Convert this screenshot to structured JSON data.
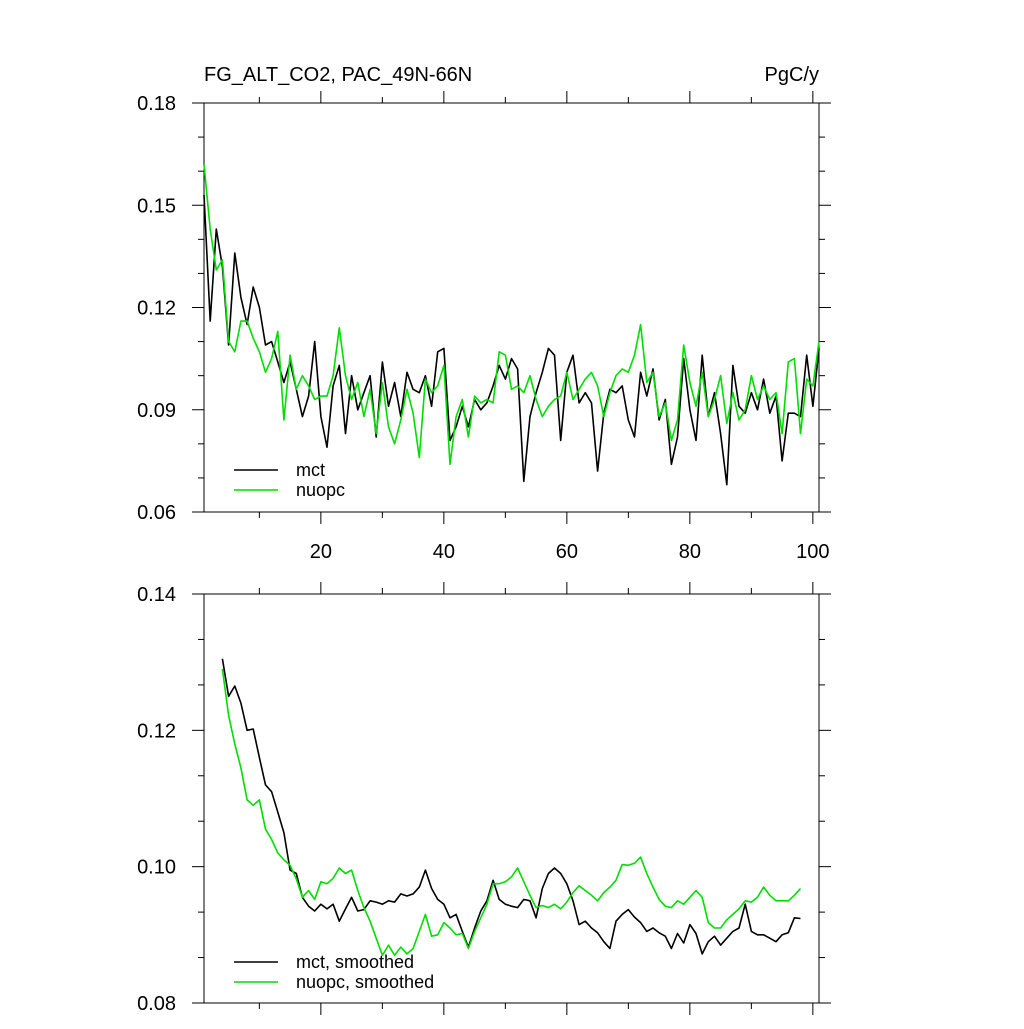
{
  "chart_data": [
    {
      "type": "line",
      "title": "FG_ALT_CO2, PAC_49N-66N",
      "units": "PgC/y",
      "xlabel": "",
      "ylabel": "",
      "xlim": [
        1,
        101
      ],
      "ylim": [
        0.06,
        0.18
      ],
      "x_ticks": [
        20,
        40,
        60,
        80,
        100
      ],
      "y_ticks": [
        "0.06",
        "0.09",
        "0.12",
        "0.15",
        "0.18"
      ],
      "grid": false,
      "legend_position": "bottom-left",
      "x": [
        1,
        2,
        3,
        4,
        5,
        6,
        7,
        8,
        9,
        10,
        11,
        12,
        13,
        14,
        15,
        16,
        17,
        18,
        19,
        20,
        21,
        22,
        23,
        24,
        25,
        26,
        27,
        28,
        29,
        30,
        31,
        32,
        33,
        34,
        35,
        36,
        37,
        38,
        39,
        40,
        41,
        42,
        43,
        44,
        45,
        46,
        47,
        48,
        49,
        50,
        51,
        52,
        53,
        54,
        55,
        56,
        57,
        58,
        59,
        60,
        61,
        62,
        63,
        64,
        65,
        66,
        67,
        68,
        69,
        70,
        71,
        72,
        73,
        74,
        75,
        76,
        77,
        78,
        79,
        80,
        81,
        82,
        83,
        84,
        85,
        86,
        87,
        88,
        89,
        90,
        91,
        92,
        93,
        94,
        95,
        96,
        97,
        98,
        99,
        100,
        101
      ],
      "series": [
        {
          "name": "mct",
          "color": "#000000",
          "values": [
            0.153,
            0.116,
            0.143,
            0.132,
            0.109,
            0.136,
            0.123,
            0.115,
            0.126,
            0.12,
            0.109,
            0.11,
            0.104,
            0.098,
            0.104,
            0.096,
            0.088,
            0.094,
            0.11,
            0.088,
            0.079,
            0.097,
            0.103,
            0.083,
            0.1,
            0.09,
            0.095,
            0.1,
            0.082,
            0.104,
            0.091,
            0.098,
            0.088,
            0.101,
            0.096,
            0.095,
            0.1,
            0.091,
            0.107,
            0.108,
            0.081,
            0.085,
            0.091,
            0.085,
            0.093,
            0.09,
            0.092,
            0.097,
            0.103,
            0.099,
            0.105,
            0.102,
            0.069,
            0.088,
            0.095,
            0.101,
            0.108,
            0.106,
            0.081,
            0.101,
            0.106,
            0.092,
            0.095,
            0.092,
            0.072,
            0.089,
            0.096,
            0.095,
            0.097,
            0.087,
            0.082,
            0.101,
            0.094,
            0.102,
            0.087,
            0.093,
            0.074,
            0.082,
            0.105,
            0.09,
            0.081,
            0.106,
            0.088,
            0.095,
            0.083,
            0.068,
            0.103,
            0.091,
            0.089,
            0.095,
            0.09,
            0.099,
            0.089,
            0.094,
            0.075,
            0.089,
            0.089,
            0.088,
            0.106,
            0.091,
            0.108
          ]
        },
        {
          "name": "nuopc",
          "color": "#00dd00",
          "values": [
            0.162,
            0.143,
            0.131,
            0.134,
            0.11,
            0.107,
            0.116,
            0.116,
            0.111,
            0.107,
            0.101,
            0.105,
            0.113,
            0.087,
            0.106,
            0.096,
            0.1,
            0.097,
            0.093,
            0.094,
            0.094,
            0.1,
            0.114,
            0.1,
            0.093,
            0.098,
            0.088,
            0.096,
            0.083,
            0.098,
            0.085,
            0.08,
            0.087,
            0.096,
            0.089,
            0.076,
            0.099,
            0.095,
            0.097,
            0.103,
            0.074,
            0.088,
            0.093,
            0.082,
            0.094,
            0.092,
            0.093,
            0.092,
            0.107,
            0.106,
            0.096,
            0.097,
            0.095,
            0.1,
            0.093,
            0.088,
            0.091,
            0.093,
            0.094,
            0.101,
            0.093,
            0.096,
            0.099,
            0.101,
            0.097,
            0.088,
            0.095,
            0.1,
            0.102,
            0.101,
            0.106,
            0.115,
            0.098,
            0.101,
            0.088,
            0.092,
            0.081,
            0.087,
            0.109,
            0.098,
            0.091,
            0.101,
            0.088,
            0.093,
            0.1,
            0.086,
            0.095,
            0.087,
            0.09,
            0.1,
            0.093,
            0.097,
            0.093,
            0.095,
            0.083,
            0.104,
            0.105,
            0.083,
            0.099,
            0.097,
            0.11
          ]
        }
      ]
    },
    {
      "type": "line",
      "title": "",
      "xlabel": "",
      "ylabel": "",
      "xlim": [
        1,
        101
      ],
      "ylim": [
        0.08,
        0.14
      ],
      "y_ticks": [
        "0.08",
        "0.10",
        "0.12",
        "0.14"
      ],
      "grid": false,
      "legend_position": "bottom-left",
      "x": [
        4,
        5,
        6,
        7,
        8,
        9,
        10,
        11,
        12,
        13,
        14,
        15,
        16,
        17,
        18,
        19,
        20,
        21,
        22,
        23,
        24,
        25,
        26,
        27,
        28,
        29,
        30,
        31,
        32,
        33,
        34,
        35,
        36,
        37,
        38,
        39,
        40,
        41,
        42,
        43,
        44,
        45,
        46,
        47,
        48,
        49,
        50,
        51,
        52,
        53,
        54,
        55,
        56,
        57,
        58,
        59,
        60,
        61,
        62,
        63,
        64,
        65,
        66,
        67,
        68,
        69,
        70,
        71,
        72,
        73,
        74,
        75,
        76,
        77,
        78,
        79,
        80,
        81,
        82,
        83,
        84,
        85,
        86,
        87,
        88,
        89,
        90,
        91,
        92,
        93,
        94,
        95,
        96,
        97,
        98
      ],
      "series": [
        {
          "name": "mct, smoothed",
          "color": "#000000",
          "values": [
            0.1305,
            0.125,
            0.1265,
            0.124,
            0.12,
            0.1202,
            0.116,
            0.112,
            0.111,
            0.108,
            0.105,
            0.0995,
            0.099,
            0.0955,
            0.0942,
            0.0935,
            0.0945,
            0.0938,
            0.0945,
            0.092,
            0.0938,
            0.0955,
            0.0935,
            0.0937,
            0.095,
            0.0948,
            0.0945,
            0.095,
            0.0948,
            0.096,
            0.0957,
            0.096,
            0.097,
            0.0995,
            0.0968,
            0.0952,
            0.0945,
            0.0925,
            0.093,
            0.0905,
            0.0882,
            0.091,
            0.0935,
            0.095,
            0.098,
            0.0952,
            0.0945,
            0.0942,
            0.094,
            0.0952,
            0.095,
            0.0925,
            0.0968,
            0.099,
            0.0998,
            0.099,
            0.0975,
            0.095,
            0.0915,
            0.092,
            0.091,
            0.0903,
            0.089,
            0.088,
            0.092,
            0.093,
            0.0937,
            0.0926,
            0.0918,
            0.0905,
            0.091,
            0.0903,
            0.0898,
            0.088,
            0.0902,
            0.0888,
            0.0915,
            0.0902,
            0.0872,
            0.089,
            0.0898,
            0.0885,
            0.0895,
            0.0905,
            0.091,
            0.0945,
            0.0905,
            0.09,
            0.09,
            0.0895,
            0.089,
            0.09,
            0.0903,
            0.0925,
            0.0924
          ]
        },
        {
          "name": "nuopc, smoothed",
          "color": "#00dd00",
          "values": [
            0.129,
            0.1222,
            0.118,
            0.1145,
            0.1098,
            0.109,
            0.1098,
            0.1055,
            0.104,
            0.102,
            0.101,
            0.1002,
            0.0982,
            0.0955,
            0.0965,
            0.0952,
            0.0978,
            0.0975,
            0.0983,
            0.0998,
            0.099,
            0.0995,
            0.0965,
            0.094,
            0.092,
            0.0895,
            0.087,
            0.0885,
            0.087,
            0.0882,
            0.0872,
            0.088,
            0.0905,
            0.093,
            0.0898,
            0.09,
            0.0918,
            0.091,
            0.09,
            0.0902,
            0.088,
            0.0905,
            0.0925,
            0.0945,
            0.0975,
            0.0975,
            0.0978,
            0.0985,
            0.0998,
            0.0978,
            0.0958,
            0.094,
            0.0943,
            0.094,
            0.0945,
            0.0938,
            0.0948,
            0.0962,
            0.0972,
            0.0965,
            0.0958,
            0.095,
            0.0962,
            0.097,
            0.098,
            0.1003,
            0.1002,
            0.1005,
            0.1014,
            0.099,
            0.097,
            0.0952,
            0.0942,
            0.094,
            0.095,
            0.0945,
            0.0955,
            0.0965,
            0.0955,
            0.0918,
            0.091,
            0.091,
            0.0922,
            0.093,
            0.0938,
            0.095,
            0.0948,
            0.0955,
            0.097,
            0.0958,
            0.095,
            0.095,
            0.095,
            0.0958,
            0.0968
          ]
        }
      ]
    }
  ]
}
